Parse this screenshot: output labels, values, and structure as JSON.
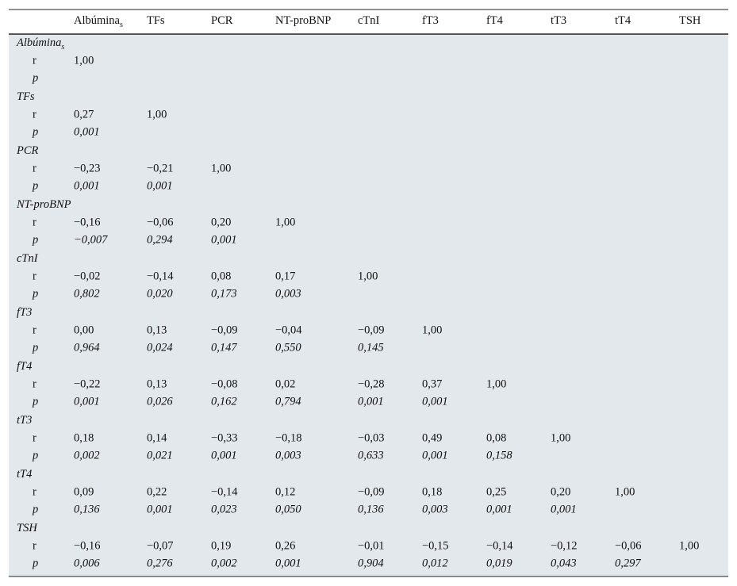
{
  "table": {
    "columns": [
      {
        "label": "Albúmina",
        "sub": "s"
      },
      {
        "label": "TFs"
      },
      {
        "label": "PCR"
      },
      {
        "label": "NT-proBNP"
      },
      {
        "label": "cTnI"
      },
      {
        "label": "fT3"
      },
      {
        "label": "fT4"
      },
      {
        "label": "tT3"
      },
      {
        "label": "tT4"
      },
      {
        "label": "TSH"
      }
    ],
    "groups": [
      {
        "label": "Albúmina",
        "sub": "s",
        "r": {
          "label": "r",
          "values": [
            "1,00"
          ]
        },
        "p": {
          "label": "p",
          "values": []
        }
      },
      {
        "label": "TFs",
        "r": {
          "label": "r",
          "values": [
            "0,27",
            "1,00"
          ]
        },
        "p": {
          "label": "p",
          "values": [
            "0,001"
          ]
        }
      },
      {
        "label": "PCR",
        "r": {
          "label": "r",
          "values": [
            "−0,23",
            "−0,21",
            "1,00"
          ]
        },
        "p": {
          "label": "p",
          "values": [
            "0,001",
            "0,001"
          ]
        }
      },
      {
        "label": "NT-proBNP",
        "r": {
          "label": "r",
          "values": [
            "−0,16",
            "−0,06",
            "0,20",
            "1,00"
          ]
        },
        "p": {
          "label": "p",
          "values": [
            "−0,007",
            "0,294",
            "0,001"
          ]
        }
      },
      {
        "label": "cTnI",
        "r": {
          "label": "r",
          "values": [
            "−0,02",
            "−0,14",
            "0,08",
            "0,17",
            "1,00"
          ]
        },
        "p": {
          "label": "p",
          "values": [
            "0,802",
            "0,020",
            "0,173",
            "0,003"
          ]
        }
      },
      {
        "label": "fT3",
        "r": {
          "label": "r",
          "values": [
            "0,00",
            "0,13",
            "−0,09",
            "−0,04",
            "−0,09",
            "1,00"
          ]
        },
        "p": {
          "label": "p",
          "values": [
            "0,964",
            "0,024",
            "0,147",
            "0,550",
            "0,145"
          ]
        }
      },
      {
        "label": "fT4",
        "r": {
          "label": "r",
          "values": [
            "−0,22",
            "0,13",
            "−0,08",
            "0,02",
            "−0,28",
            "0,37",
            "1,00"
          ]
        },
        "p": {
          "label": "p",
          "values": [
            "0,001",
            "0,026",
            "0,162",
            "0,794",
            "0,001",
            "0,001"
          ]
        }
      },
      {
        "label": "tT3",
        "r": {
          "label": "r",
          "values": [
            "0,18",
            "0,14",
            "−0,33",
            "−0,18",
            "−0,03",
            "0,49",
            "0,08",
            "1,00"
          ]
        },
        "p": {
          "label": "p",
          "values": [
            "0,002",
            "0,021",
            "0,001",
            "0,003",
            "0,633",
            "0,001",
            "0,158"
          ]
        }
      },
      {
        "label": "tT4",
        "r": {
          "label": "r",
          "values": [
            "0,09",
            "0,22",
            "−0,14",
            "0,12",
            "−0,09",
            "0,18",
            "0,25",
            "0,20",
            "1,00"
          ]
        },
        "p": {
          "label": "p",
          "values": [
            "0,136",
            "0,001",
            "0,023",
            "0,050",
            "0,136",
            "0,003",
            "0,001",
            "0,001"
          ]
        }
      },
      {
        "label": "TSH",
        "r": {
          "label": "r",
          "values": [
            "−0,16",
            "−0,07",
            "0,19",
            "0,26",
            "−0,01",
            "−0,15",
            "−0,14",
            "−0,12",
            "−0,06",
            "1,00"
          ]
        },
        "p": {
          "label": "p",
          "values": [
            "0,006",
            "0,276",
            "0,002",
            "0,001",
            "0,904",
            "0,012",
            "0,019",
            "0,043",
            "0,297"
          ]
        }
      }
    ]
  }
}
